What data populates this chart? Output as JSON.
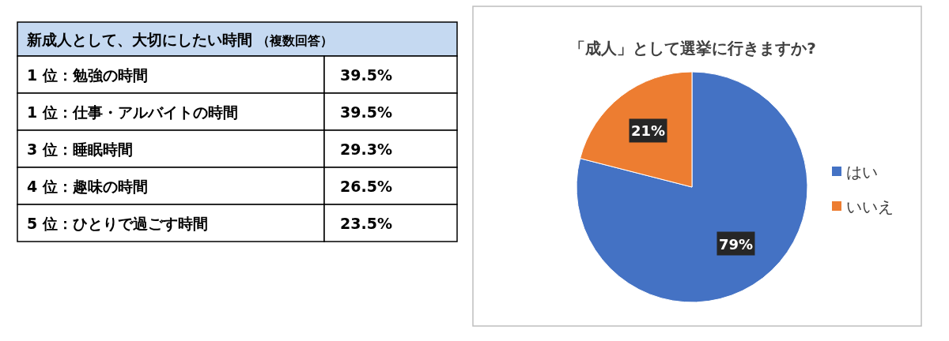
{
  "chart_data": [
    {
      "type": "other",
      "title": "新成人として、大切にしたい時間",
      "subtitle": "（複数回答）",
      "categories": [
        "1 位：勉強の時間",
        "1 位：仕事・アルバイトの時間",
        "3 位：睡眠時間",
        "4 位：趣味の時間",
        "5 位：ひとりで過ごす時間"
      ],
      "value_labels": [
        "39.5%",
        "39.5%",
        "29.3%",
        "26.5%",
        "23.5%"
      ]
    },
    {
      "type": "pie",
      "title": "「成人」として選挙に行きますか?",
      "categories": [
        "はい",
        "いいえ"
      ],
      "values": [
        79,
        21
      ],
      "colors": [
        "#4472c4",
        "#ed7d31"
      ],
      "value_labels": [
        "79%",
        "21%"
      ],
      "legend": "right"
    }
  ]
}
